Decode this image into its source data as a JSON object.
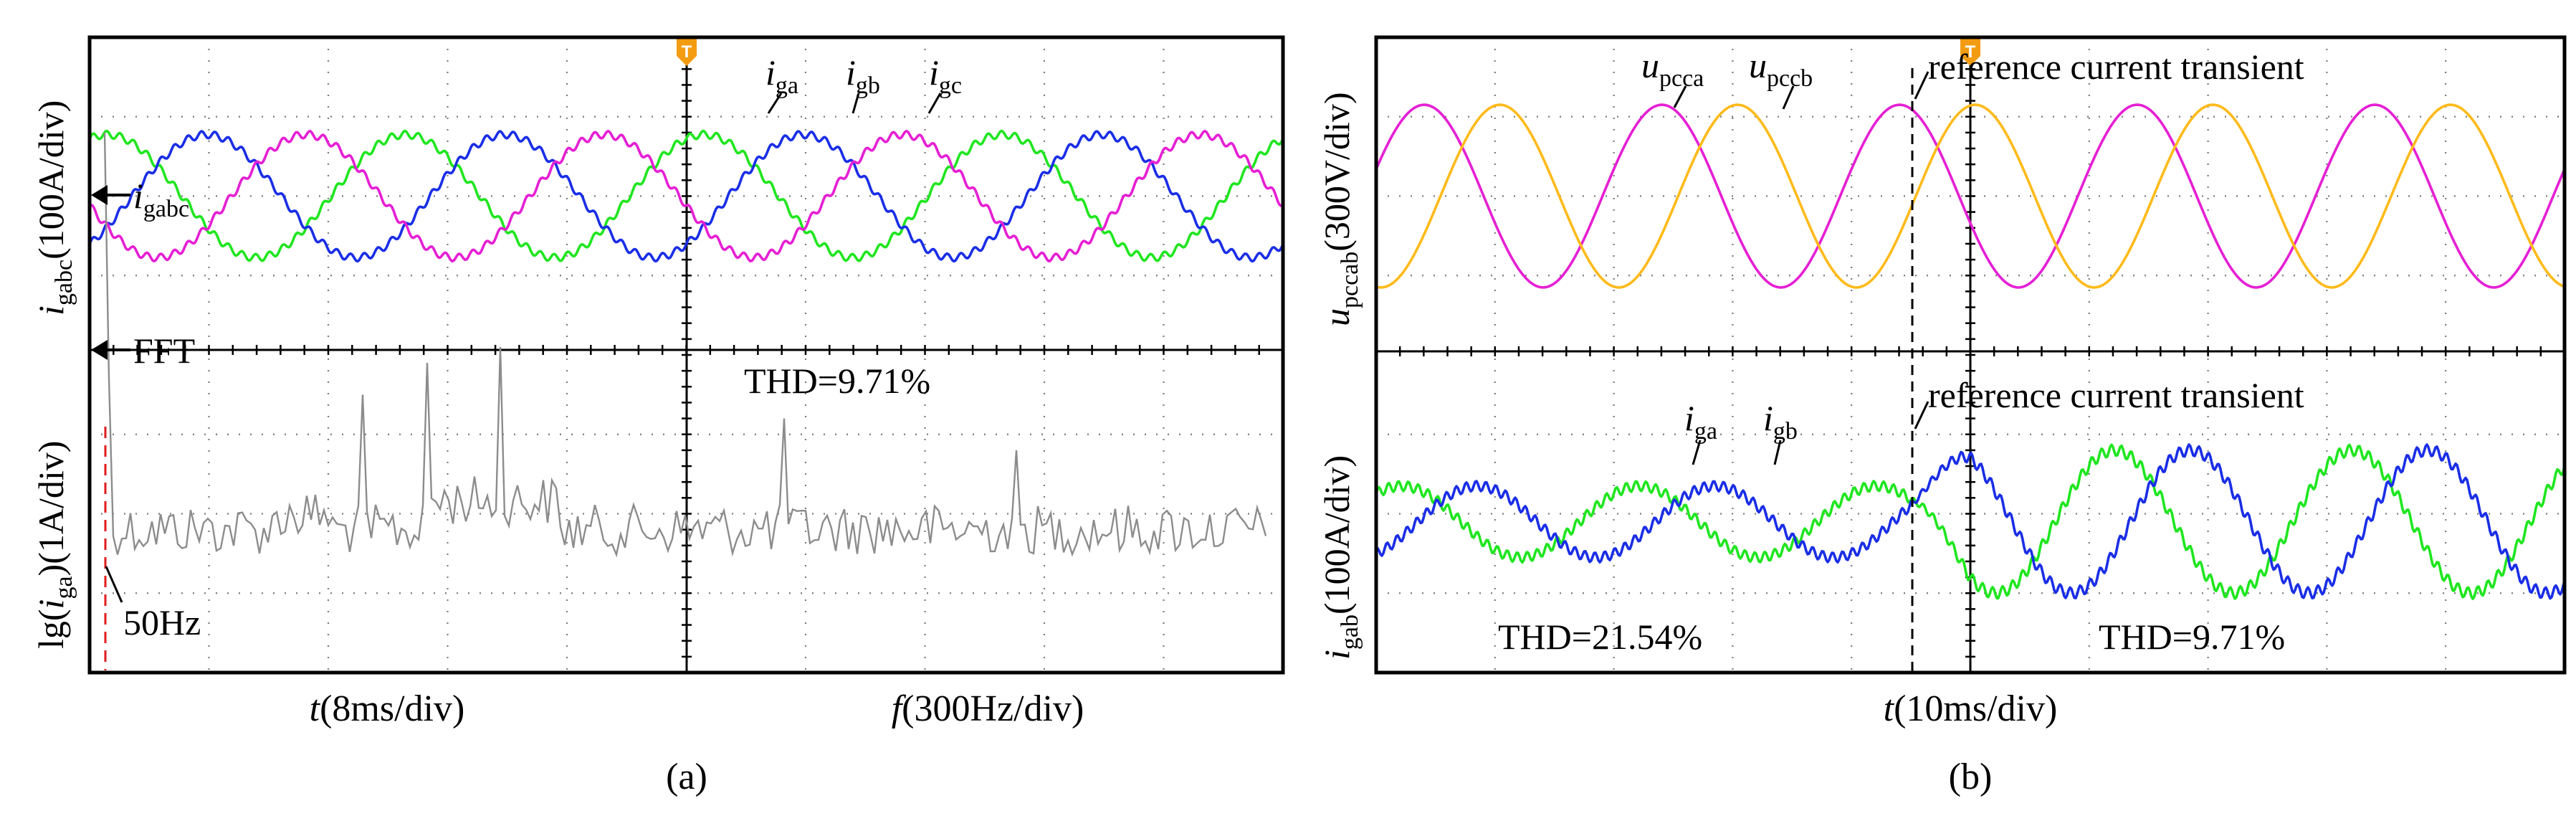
{
  "figure": {
    "captions": [
      "(a)",
      "(b)"
    ]
  },
  "colors": {
    "ia": "#1fe61f",
    "ib": "#1a2ee6",
    "ic": "#e61fd4",
    "upcca": "#e61fd4",
    "upccb": "#ffba1a",
    "fft": "#8c8c8c",
    "marker_50hz": "#e01c1c",
    "trigger": "#f39c12"
  },
  "chart_data": [
    {
      "panel": "a",
      "type": "line",
      "grid": true,
      "xlabel_left": {
        "main": "t",
        "rest": "(8ms/div)"
      },
      "xlabel_right": {
        "main": "f",
        "rest": "(300Hz/div)"
      },
      "upper": {
        "ylabel": {
          "main": "i",
          "sub": "gabc",
          "rest": "(100A/div)"
        },
        "channel_marker": {
          "main": "i",
          "sub": "gabc"
        },
        "series": [
          {
            "name": "i",
            "sub": "ga",
            "color": "#1fe61f"
          },
          {
            "name": "i",
            "sub": "gb",
            "color": "#1a2ee6"
          },
          {
            "name": "i",
            "sub": "gc",
            "color": "#e61fd4"
          }
        ],
        "fundamental_hz": 50,
        "time_per_div_ms": 8,
        "current_per_div_A": 100,
        "amplitude_div": 0.5
      },
      "lower": {
        "ylabel": {
          "pre": "lg(",
          "main": "i",
          "sub": "ga",
          "rest": ")(1A/div)"
        },
        "channel_marker": "FFT",
        "annotation_thd": "THD=9.71%",
        "annotation_freq": "50Hz",
        "freq_per_div_hz": 300
      }
    },
    {
      "panel": "b",
      "type": "line",
      "grid": true,
      "xlabel": {
        "main": "t",
        "rest": "(10ms/div)"
      },
      "time_per_div_ms": 10,
      "transient_label": "reference current transient",
      "upper": {
        "ylabel": {
          "main": "u",
          "sub": "pccab",
          "rest": "(300V/div)"
        },
        "series": [
          {
            "name": "u",
            "sub": "pcca",
            "color": "#e61fd4"
          },
          {
            "name": "u",
            "sub": "pccb",
            "color": "#ffba1a"
          }
        ]
      },
      "lower": {
        "ylabel": {
          "main": "i",
          "sub": "gab",
          "rest": "(100A/div)"
        },
        "series": [
          {
            "name": "i",
            "sub": "ga",
            "color": "#1fe61f"
          },
          {
            "name": "i",
            "sub": "gb",
            "color": "#1a2ee6"
          }
        ],
        "thd_before": "THD=21.54%",
        "thd_after": "THD=9.71%",
        "amplitude_before_div": 0.45,
        "amplitude_after_div": 0.9
      }
    }
  ]
}
